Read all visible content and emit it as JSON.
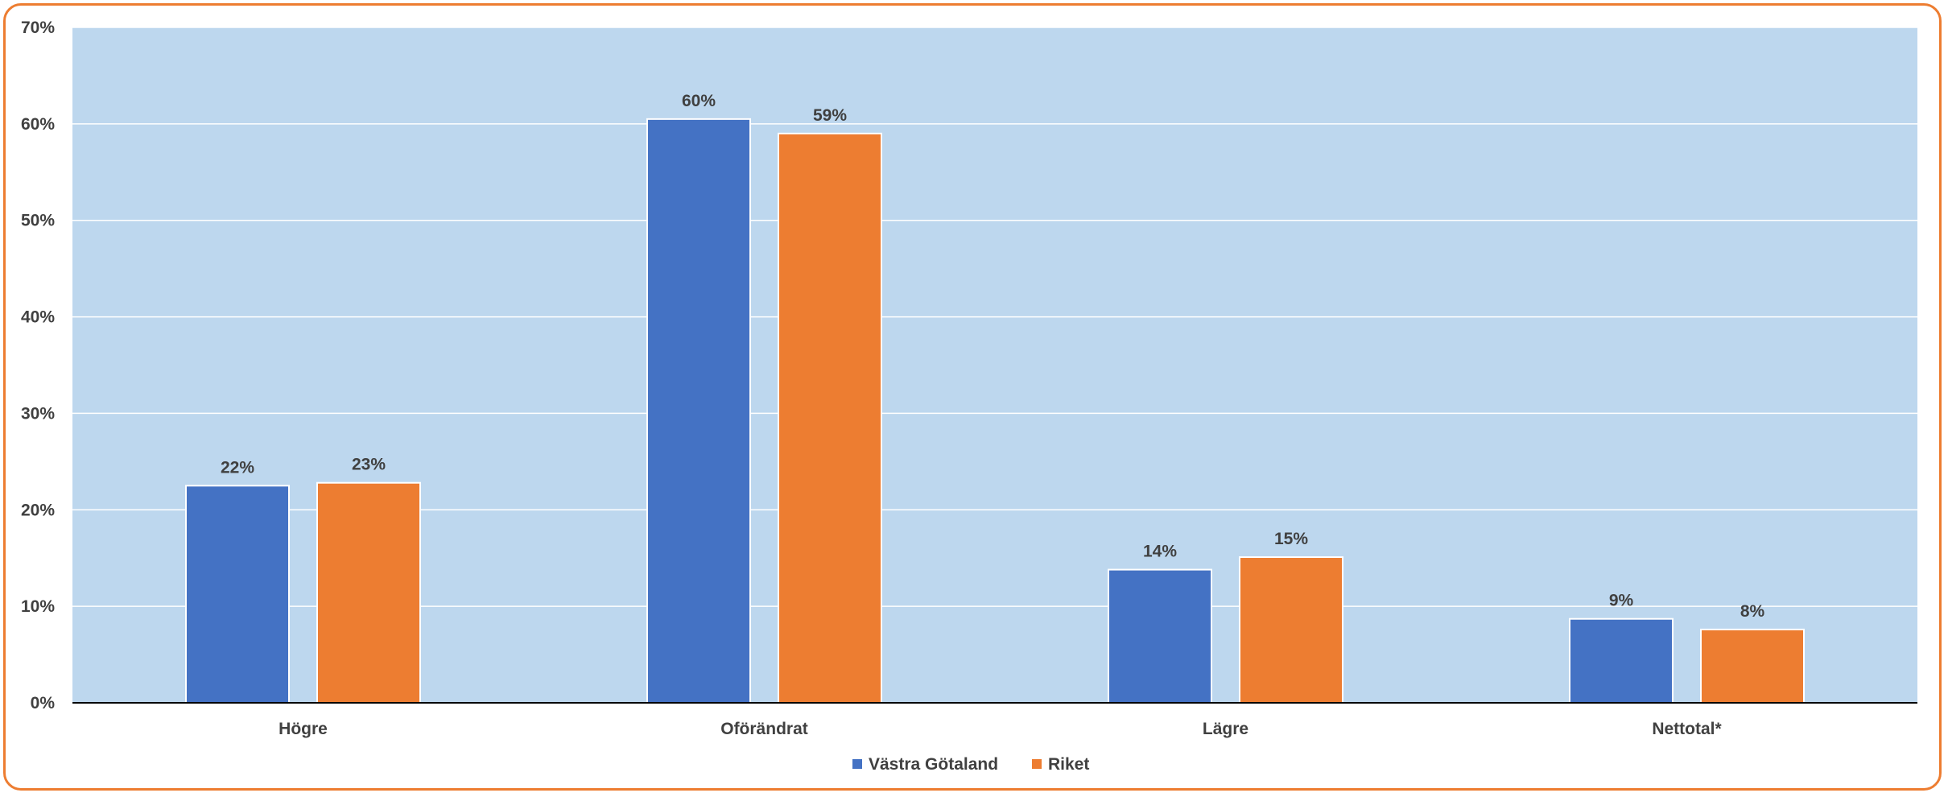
{
  "chart_data": {
    "type": "bar",
    "categories": [
      "Högre",
      "Oförändrat",
      "Lägre",
      "Nettotal*"
    ],
    "series": [
      {
        "name": "Västra Götaland",
        "color": "#4472C4",
        "values": [
          22.5,
          60.5,
          13.8,
          8.7
        ],
        "labels": [
          "22%",
          "60%",
          "14%",
          "9%"
        ]
      },
      {
        "name": "Riket",
        "color": "#ED7D31",
        "values": [
          22.8,
          59.0,
          15.1,
          7.6
        ],
        "labels": [
          "23%",
          "59%",
          "15%",
          "8%"
        ]
      }
    ],
    "ylim": [
      0,
      70
    ],
    "yticks": [
      "0%",
      "10%",
      "20%",
      "30%",
      "40%",
      "50%",
      "60%",
      "70%"
    ],
    "grid": true,
    "legend_position": "bottom",
    "plot_background": "#BDD7EE",
    "title": "",
    "xlabel": "",
    "ylabel": ""
  }
}
